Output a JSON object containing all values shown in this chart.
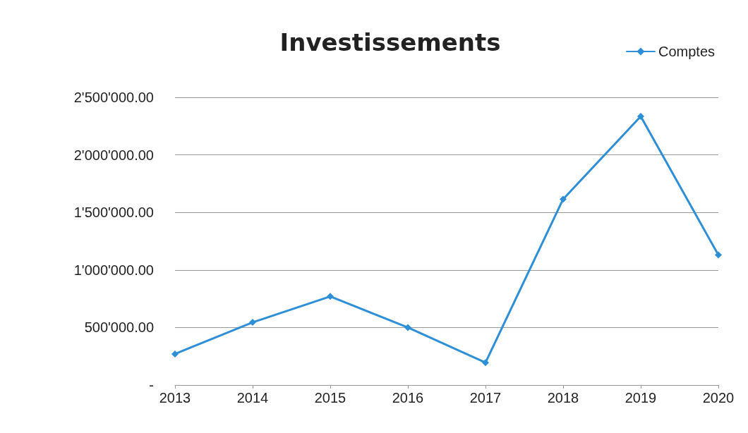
{
  "chart_data": {
    "type": "line",
    "title": "Investissements",
    "categories": [
      "2013",
      "2014",
      "2015",
      "2016",
      "2017",
      "2018",
      "2019",
      "2020"
    ],
    "series": [
      {
        "name": "Comptes",
        "color": "#2e8fd6",
        "values": [
          270000,
          545000,
          770000,
          500000,
          195000,
          1615000,
          2335000,
          1130000
        ]
      }
    ],
    "ylim": [
      0,
      2500000
    ],
    "yticks": [
      {
        "value": 0,
        "label": "-"
      },
      {
        "value": 500000,
        "label": "500'000.00"
      },
      {
        "value": 1000000,
        "label": "1'000'000.00"
      },
      {
        "value": 1500000,
        "label": "1'500'000.00"
      },
      {
        "value": 2000000,
        "label": "2'000'000.00"
      },
      {
        "value": 2500000,
        "label": "2'500'000.00"
      }
    ],
    "grid": "y",
    "legend": "top right",
    "marker": "diamond",
    "line_style": "solid"
  }
}
